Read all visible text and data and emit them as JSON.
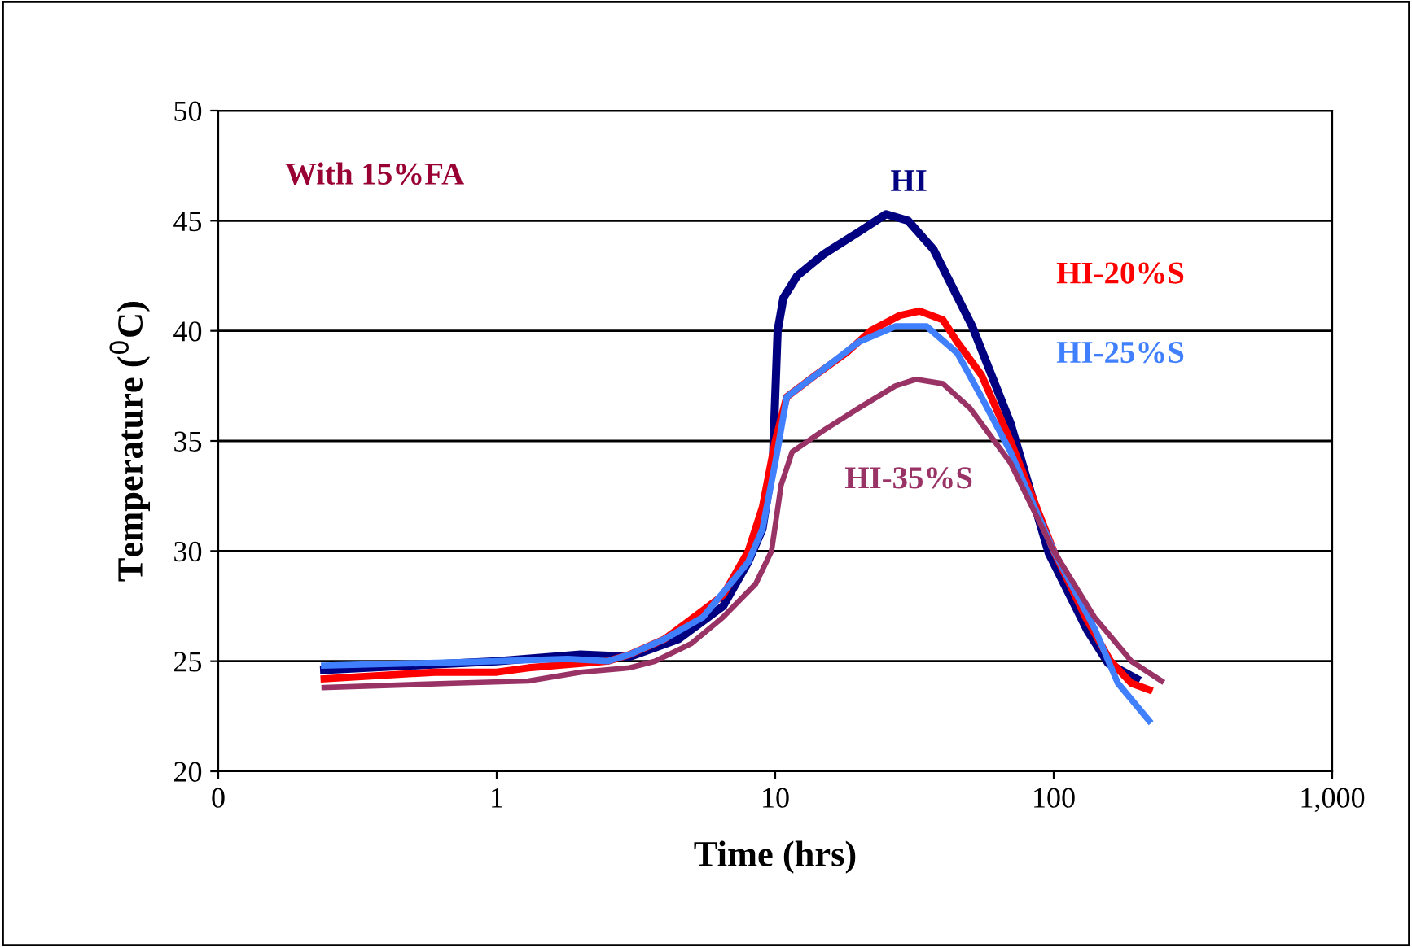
{
  "chart_data": {
    "type": "line",
    "xlabel": "Time (hrs)",
    "ylabel": "Temperature ($^{0}$C)",
    "annotations": [
      "With 15%FA"
    ],
    "log": "x",
    "xlim": [
      0.1,
      1000
    ],
    "xticks": [
      {
        "value": 0.1,
        "label": "0"
      },
      1,
      10,
      100,
      {
        "value": 1000,
        "label": "1,000"
      }
    ],
    "ylim": [
      20,
      50
    ],
    "yticks": [
      20,
      25,
      30,
      35,
      40,
      45,
      50
    ],
    "grid": "y",
    "legend": false,
    "marker": "none",
    "line_style": "solid",
    "series": [
      {
        "name": "HI",
        "color": "#000080",
        "x": [
          0.24,
          1.0,
          2.0,
          3.0,
          4.5,
          6.5,
          8,
          9,
          9.8,
          10.2,
          10.7,
          12,
          15,
          20,
          25,
          30,
          37,
          51,
          70,
          96,
          132,
          157,
          198
        ],
        "values": [
          24.6,
          25.0,
          25.3,
          25.2,
          26.0,
          27.5,
          29.5,
          31.0,
          34.0,
          40.0,
          41.5,
          42.5,
          43.5,
          44.5,
          45.3,
          45.0,
          43.7,
          40.2,
          35.8,
          29.9,
          26.4,
          24.9,
          24.2
        ]
      },
      {
        "name": "HI-20%S",
        "color": "#ff0000",
        "x": [
          0.24,
          0.6,
          1.0,
          1.3,
          2.5,
          3,
          4,
          5.5,
          6.5,
          8,
          9,
          10,
          11,
          14,
          18,
          22,
          28,
          33,
          40,
          45,
          55,
          70,
          100,
          130,
          160,
          190,
          220
        ],
        "values": [
          24.2,
          24.5,
          24.5,
          24.7,
          25.0,
          25.3,
          26.0,
          27.3,
          28.0,
          30.0,
          32.0,
          35.0,
          37.0,
          38.0,
          39.0,
          40.0,
          40.7,
          40.9,
          40.5,
          39.5,
          38.0,
          35.0,
          30.0,
          27.0,
          25.0,
          24.0,
          23.7
        ]
      },
      {
        "name": "HI-25%S",
        "color": "#4080ff",
        "x": [
          0.24,
          1.0,
          1.8,
          2.5,
          3,
          4,
          5.5,
          8,
          9,
          10,
          11,
          14,
          20,
          27,
          35,
          45,
          55,
          70,
          100,
          140,
          170,
          220
        ],
        "values": [
          24.8,
          25.0,
          25.1,
          25.0,
          25.3,
          26.0,
          27.0,
          29.5,
          31.0,
          34.0,
          37.0,
          38.0,
          39.5,
          40.2,
          40.2,
          39.0,
          37.0,
          34.5,
          30.0,
          26.5,
          24.0,
          22.3
        ]
      },
      {
        "name": "HI-35%S",
        "color": "#993366",
        "x": [
          0.24,
          0.7,
          1.3,
          2,
          3,
          3.7,
          5,
          6.5,
          8.5,
          9.7,
          10.5,
          11.5,
          15,
          20,
          27,
          32,
          40,
          50,
          70,
          100,
          140,
          190,
          244
        ],
        "values": [
          23.8,
          24.0,
          24.1,
          24.5,
          24.7,
          25.0,
          25.8,
          27.0,
          28.5,
          30.0,
          33.0,
          34.5,
          35.5,
          36.5,
          37.5,
          37.8,
          37.6,
          36.5,
          34.0,
          30.0,
          27.0,
          25.0,
          24.1
        ]
      }
    ]
  }
}
